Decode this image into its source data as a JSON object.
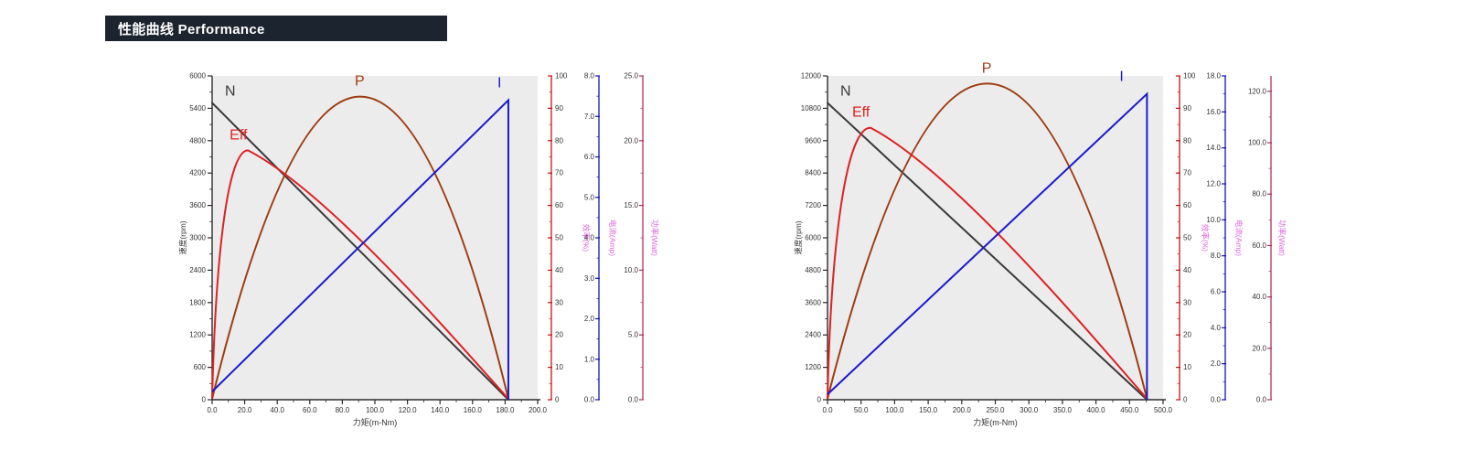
{
  "header": {
    "title": "性能曲线 Performance",
    "bg": "#1c242f",
    "fg": "#ffffff"
  },
  "colors": {
    "plot_bg": "#ececec",
    "axis_black": "#2b2b2b",
    "tick_label": "#333333",
    "axis_title_magenta": "#e060e0",
    "efficiency_axis": "#cc1111",
    "current_axis": "#1111bb",
    "power_axis": "#b03060"
  },
  "chart_data": [
    {
      "type": "line",
      "title": "",
      "xlabel": "力矩(m-Nm)",
      "x_axis": {
        "min": 0,
        "max": 200,
        "step": 20,
        "minor_step": 10,
        "ticks": [
          "0.0",
          "20.0",
          "40.0",
          "60.0",
          "80.0",
          "100.0",
          "120.0",
          "140.0",
          "160.0",
          "180.0",
          "200.0"
        ]
      },
      "y_axis": {
        "label": "速度(rpm)",
        "min": 0,
        "max": 6000,
        "step": 600,
        "minor_step": 300,
        "ticks": [
          "0",
          "600",
          "1200",
          "1800",
          "2400",
          "3000",
          "3600",
          "4200",
          "4800",
          "5400",
          "6000"
        ]
      },
      "efficiency_axis": {
        "label": "效率(%)",
        "min": 0,
        "max": 100,
        "scale_max": 100,
        "minor_step": 5,
        "ticks": [
          "0",
          "10",
          "20",
          "30",
          "40",
          "50",
          "60",
          "70",
          "80",
          "90",
          "100"
        ]
      },
      "current_axis": {
        "label": "电流(Amp)",
        "min": 0,
        "max": 8,
        "scale_max": 8,
        "minor_step": 0.5,
        "ticks": [
          "0.0",
          "1.0",
          "2.0",
          "3.0",
          "4.0",
          "5.0",
          "6.0",
          "7.0",
          "8.0"
        ]
      },
      "power_axis": {
        "label": "功率(Watt)",
        "min": 0,
        "max": 25,
        "scale_max": 25,
        "minor_step": 2.5,
        "ticks": [
          "0.0",
          "5.0",
          "10.0",
          "15.0",
          "20.0",
          "25.0"
        ]
      },
      "series": [
        {
          "name": "N",
          "label": "N",
          "color": "#3a3a3a",
          "axis": "speed",
          "no_load_speed_rpm": 5500,
          "stall_torque_mNm": 182,
          "label_dx": 14,
          "label_dy": -8
        },
        {
          "name": "P",
          "label": "P",
          "color": "#9e3d10",
          "axis": "power",
          "max_power_W": 23.4,
          "peak_torque_mNm": 91,
          "stall_torque_mNm": 182,
          "label_dx": -6,
          "label_dy": -12
        },
        {
          "name": "Eff",
          "label": "Eff",
          "color": "#dd2222",
          "axis": "efficiency",
          "max_efficiency_pct": 77,
          "peak_torque_mNm": 22,
          "stall_torque_mNm": 182,
          "label_dx": -20,
          "label_dy": -12
        },
        {
          "name": "I",
          "label": "I",
          "color": "#1a1acc",
          "axis": "current",
          "no_load_current_A": 0.2,
          "stall_current_A": 7.4,
          "stall_torque_mNm": 182,
          "label_dx": -12,
          "label_dy": -14
        }
      ]
    },
    {
      "type": "line",
      "title": "",
      "xlabel": "力矩(m-Nm)",
      "x_axis": {
        "min": 0,
        "max": 500,
        "step": 50,
        "minor_step": 25,
        "ticks": [
          "0.0",
          "50.0",
          "100.0",
          "150.0",
          "200.0",
          "250.0",
          "300.0",
          "350.0",
          "400.0",
          "450.0",
          "500.0"
        ]
      },
      "y_axis": {
        "label": "速度(rpm)",
        "min": 0,
        "max": 12000,
        "step": 1200,
        "minor_step": 600,
        "ticks": [
          "0",
          "1200",
          "2400",
          "3600",
          "4800",
          "6000",
          "7200",
          "8400",
          "9600",
          "10800",
          "12000"
        ]
      },
      "efficiency_axis": {
        "label": "效率(%)",
        "min": 0,
        "max": 100,
        "scale_max": 100,
        "minor_step": 5,
        "ticks": [
          "0",
          "10",
          "20",
          "30",
          "40",
          "50",
          "60",
          "70",
          "80",
          "90",
          "100"
        ]
      },
      "current_axis": {
        "label": "电流(Amp)",
        "min": 0,
        "max": 18,
        "scale_max": 18,
        "minor_step": 1,
        "ticks": [
          "0.0",
          "2.0",
          "4.0",
          "6.0",
          "8.0",
          "10.0",
          "12.0",
          "14.0",
          "16.0",
          "18.0"
        ]
      },
      "power_axis": {
        "label": "功率(Watt)",
        "min": 0,
        "max": 120,
        "scale_max": 126,
        "minor_step": 10,
        "ticks": [
          "0.0",
          "20.0",
          "40.0",
          "60.0",
          "80.0",
          "100.0",
          "120.0"
        ]
      },
      "series": [
        {
          "name": "N",
          "label": "N",
          "color": "#3a3a3a",
          "axis": "speed",
          "no_load_speed_rpm": 11000,
          "stall_torque_mNm": 476,
          "label_dx": 14,
          "label_dy": -8
        },
        {
          "name": "P",
          "label": "P",
          "color": "#9e3d10",
          "axis": "power",
          "max_power_W": 123,
          "peak_torque_mNm": 238,
          "stall_torque_mNm": 476,
          "label_dx": -6,
          "label_dy": -12
        },
        {
          "name": "Eff",
          "label": "Eff",
          "color": "#dd2222",
          "axis": "efficiency",
          "max_efficiency_pct": 84,
          "peak_torque_mNm": 64,
          "stall_torque_mNm": 476,
          "label_dx": -20,
          "label_dy": -12
        },
        {
          "name": "I",
          "label": "I",
          "color": "#1a1acc",
          "axis": "current",
          "no_load_current_A": 0.3,
          "stall_current_A": 17,
          "stall_torque_mNm": 476,
          "label_dx": -30,
          "label_dy": -14
        }
      ]
    }
  ]
}
